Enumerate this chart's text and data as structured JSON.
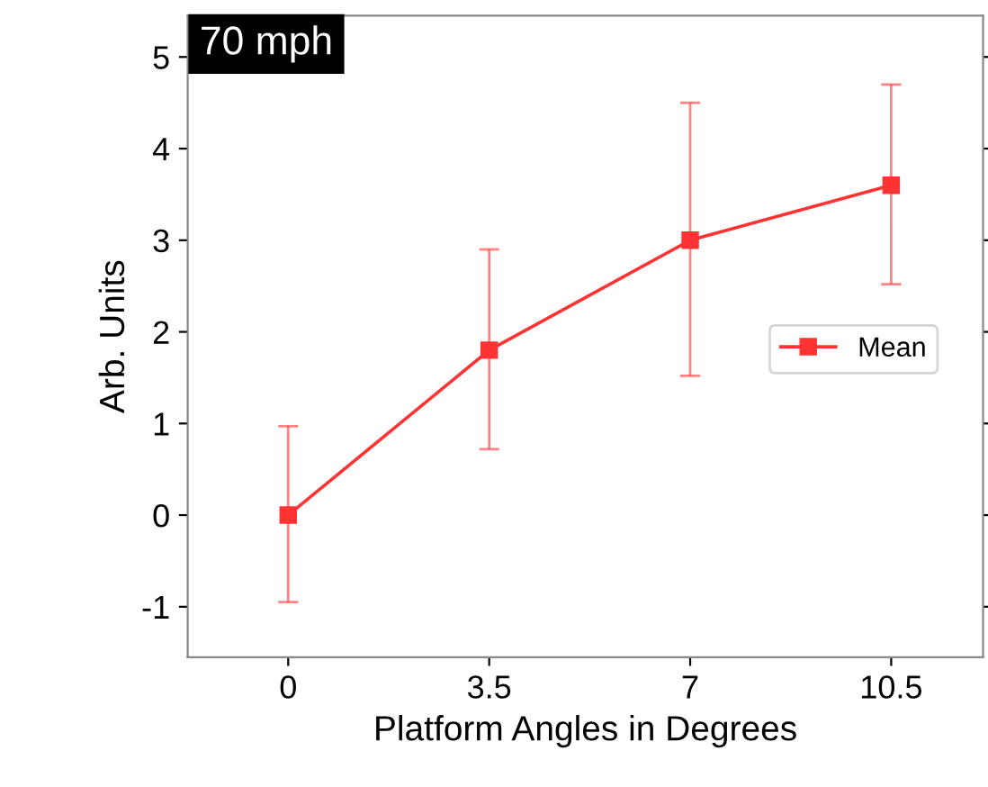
{
  "chart_data": {
    "type": "line",
    "title": "70 mph",
    "xlabel": "Platform Angles in Degrees",
    "ylabel": "Arb. Units",
    "x": [
      0,
      3.5,
      7,
      10.5
    ],
    "series": [
      {
        "name": "Mean",
        "color": "#ff3333",
        "values": [
          0,
          1.8,
          3.0,
          3.6
        ],
        "errors": [
          [
            -0.95,
            0.97
          ],
          [
            0.72,
            2.9
          ],
          [
            1.52,
            4.5
          ],
          [
            2.52,
            4.7
          ]
        ]
      }
    ],
    "xlim": [
      -1.75,
      12.1
    ],
    "ylim": [
      -1.55,
      5.45
    ],
    "xticks": [
      0,
      3.5,
      7,
      10.5
    ],
    "yticks": [
      -1,
      0,
      1,
      2,
      3,
      4,
      5
    ],
    "marker": "square",
    "line_style": "solid",
    "grid": false,
    "legend": "right"
  }
}
